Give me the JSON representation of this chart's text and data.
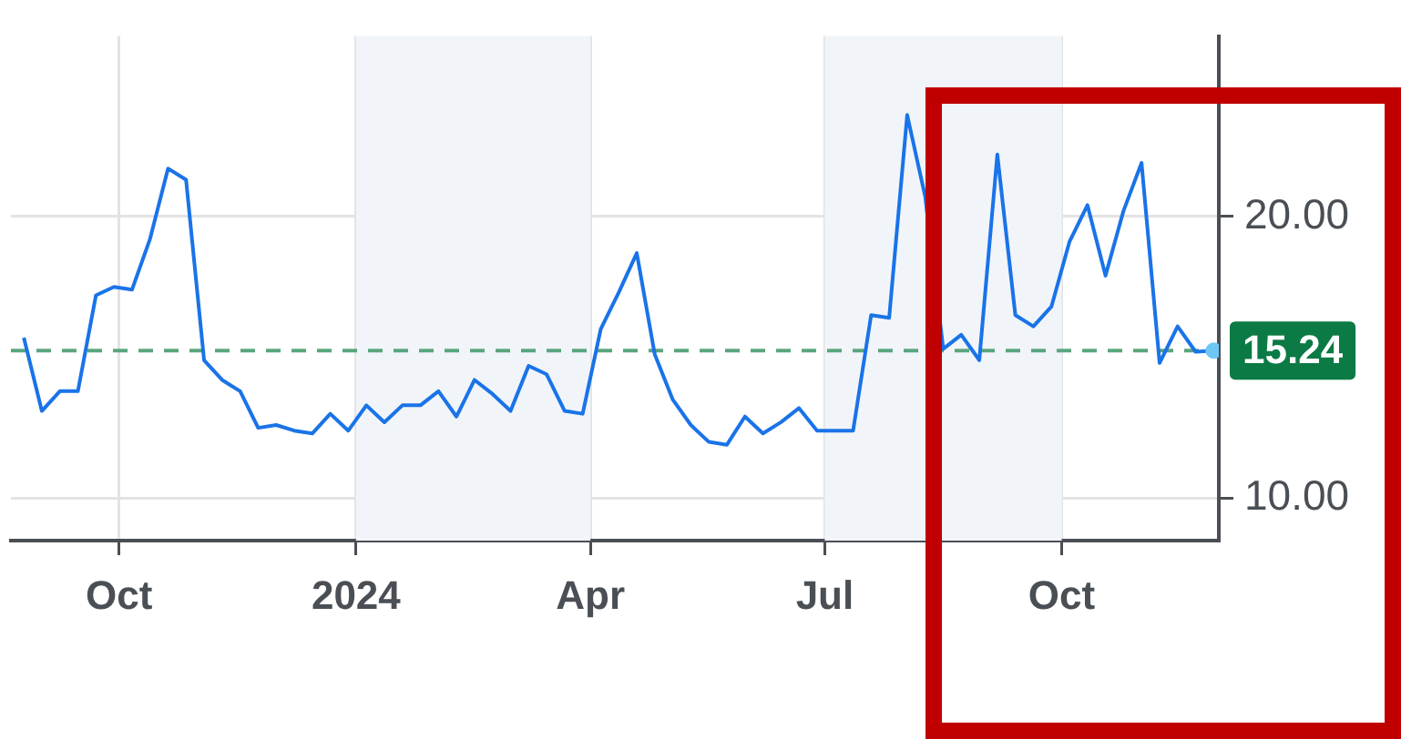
{
  "chart_data": {
    "type": "line",
    "x": [
      "2023-08-25",
      "2023-09-01",
      "2023-09-08",
      "2023-09-15",
      "2023-09-22",
      "2023-09-29",
      "2023-10-06",
      "2023-10-13",
      "2023-10-20",
      "2023-10-27",
      "2023-11-03",
      "2023-11-10",
      "2023-11-17",
      "2023-11-24",
      "2023-12-01",
      "2023-12-08",
      "2023-12-15",
      "2023-12-22",
      "2023-12-29",
      "2024-01-05",
      "2024-01-12",
      "2024-01-19",
      "2024-01-26",
      "2024-02-02",
      "2024-02-09",
      "2024-02-16",
      "2024-02-23",
      "2024-03-01",
      "2024-03-08",
      "2024-03-15",
      "2024-03-22",
      "2024-03-29",
      "2024-04-05",
      "2024-04-12",
      "2024-04-19",
      "2024-04-26",
      "2024-05-03",
      "2024-05-10",
      "2024-05-17",
      "2024-05-24",
      "2024-05-31",
      "2024-06-07",
      "2024-06-14",
      "2024-06-21",
      "2024-06-28",
      "2024-07-05",
      "2024-07-12",
      "2024-07-19",
      "2024-07-26",
      "2024-08-02",
      "2024-08-09",
      "2024-08-16",
      "2024-08-23",
      "2024-08-30",
      "2024-09-06",
      "2024-09-13",
      "2024-09-20",
      "2024-09-27",
      "2024-10-04",
      "2024-10-11",
      "2024-10-18",
      "2024-10-25",
      "2024-11-01",
      "2024-11-08",
      "2024-11-15",
      "2024-11-22",
      "2024-11-29"
    ],
    "series": [
      {
        "color": "#1a73e8",
        "values": [
          15.7,
          13.1,
          13.8,
          13.8,
          17.2,
          17.5,
          17.4,
          19.2,
          21.7,
          21.3,
          14.9,
          14.2,
          13.8,
          12.5,
          12.6,
          12.4,
          12.3,
          13.0,
          12.4,
          13.3,
          12.7,
          13.3,
          13.3,
          13.8,
          12.9,
          14.2,
          13.7,
          13.1,
          14.7,
          14.4,
          13.1,
          13.0,
          16.0,
          17.3,
          18.7,
          15.1,
          13.5,
          12.6,
          12.0,
          11.9,
          12.9,
          12.3,
          12.7,
          13.2,
          12.4,
          12.4,
          12.4,
          16.5,
          16.4,
          23.6,
          20.7,
          15.3,
          15.8,
          14.9,
          22.2,
          16.5,
          16.1,
          16.8,
          19.1,
          20.4,
          17.9,
          20.2,
          21.9,
          14.8,
          16.1,
          15.2,
          15.24
        ]
      }
    ],
    "xlim": [
      "2023-08-20",
      "2024-12-01"
    ],
    "xticks": [
      {
        "value": "2023-10-01",
        "label": "Oct"
      },
      {
        "value": "2024-01-01",
        "label": "2024"
      },
      {
        "value": "2024-04-01",
        "label": "Apr"
      },
      {
        "value": "2024-07-01",
        "label": "Jul"
      },
      {
        "value": "2024-10-01",
        "label": "Oct"
      }
    ],
    "ylim": [
      8.5,
      26.4
    ],
    "yticks": [
      {
        "value": 10,
        "label": "10.00"
      },
      {
        "value": 20,
        "label": "20.00"
      }
    ],
    "grid": true,
    "line_style": "solid",
    "ref_lines": [
      {
        "axis": "y",
        "value": 15.24,
        "label": "15.24",
        "color": "#5aa57e",
        "line_style": "dashed"
      }
    ],
    "bands": [
      {
        "axis": "x",
        "from": "2024-01-01",
        "to": "2024-04-01",
        "color": "#f1f5f9"
      },
      {
        "axis": "x",
        "from": "2024-07-01",
        "to": "2024-10-01",
        "color": "#f1f5f9"
      }
    ],
    "legend": false
  }
}
